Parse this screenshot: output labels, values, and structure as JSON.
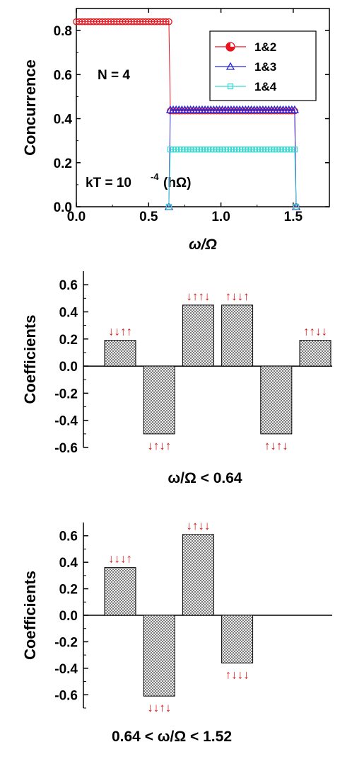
{
  "chart_data": [
    {
      "type": "scatter",
      "xlabel": "ω/Ω",
      "ylabel": "Concurrence",
      "xlim": [
        0.0,
        1.75
      ],
      "ylim": [
        0.0,
        0.9
      ],
      "xticks": [
        "0.0",
        "0.5",
        "1.0",
        "1.5"
      ],
      "yticks": [
        "0.0",
        "0.2",
        "0.4",
        "0.6",
        "0.8"
      ],
      "annotations": [
        "N = 4",
        "kT = 10",
        "-4",
        "(hΩ)"
      ],
      "legend_position": "top-right",
      "series": [
        {
          "name": "1&2",
          "color": "#e8141e",
          "marker": "circle",
          "segments": [
            {
              "x0": 0.0,
              "x1": 0.64,
              "y": 0.84
            },
            {
              "x0": 0.65,
              "x1": 1.51,
              "y": 0.435
            }
          ],
          "end_points": [
            [
              1.52,
              0.0
            ]
          ]
        },
        {
          "name": "1&3",
          "color": "#2a2ad8",
          "marker": "triangle",
          "segments": [
            {
              "x0": 0.65,
              "x1": 1.51,
              "y": 0.44
            }
          ],
          "end_points": [
            [
              0.64,
              0.0
            ],
            [
              1.52,
              0.0
            ]
          ]
        },
        {
          "name": "1&4",
          "color": "#3fd8d0",
          "marker": "square",
          "segments": [
            {
              "x0": 0.65,
              "x1": 1.51,
              "y": 0.26
            }
          ],
          "end_points": [
            [
              0.64,
              0.0
            ],
            [
              1.52,
              0.0
            ]
          ]
        }
      ]
    },
    {
      "type": "bar",
      "ylabel": "Coefficients",
      "xlabel": "ω/Ω < 0.64",
      "ylim": [
        -0.6,
        0.7
      ],
      "yticks": [
        "0.6",
        "0.4",
        "0.2",
        "0.0",
        "-0.2",
        "-0.4",
        "-0.6"
      ],
      "categories": [
        "↓↓↑↑",
        "↓↑↓↑",
        "↓↑↑↓",
        "↑↓↓↑",
        "↑↓↑↓",
        "↑↑↓↓"
      ],
      "values": [
        0.19,
        -0.5,
        0.45,
        0.45,
        -0.5,
        0.19
      ]
    },
    {
      "type": "bar",
      "ylabel": "Coefficients",
      "xlabel": "0.64 < ω/Ω < 1.52",
      "ylim": [
        -0.7,
        0.7
      ],
      "yticks": [
        "0.6",
        "0.4",
        "0.2",
        "0.0",
        "-0.2",
        "-0.4",
        "-0.6"
      ],
      "categories": [
        "↓↓↓↑",
        "↓↓↑↓",
        "↓↑↓↓",
        "↑↓↓↓"
      ],
      "values": [
        0.36,
        -0.61,
        0.61,
        -0.36
      ]
    }
  ]
}
